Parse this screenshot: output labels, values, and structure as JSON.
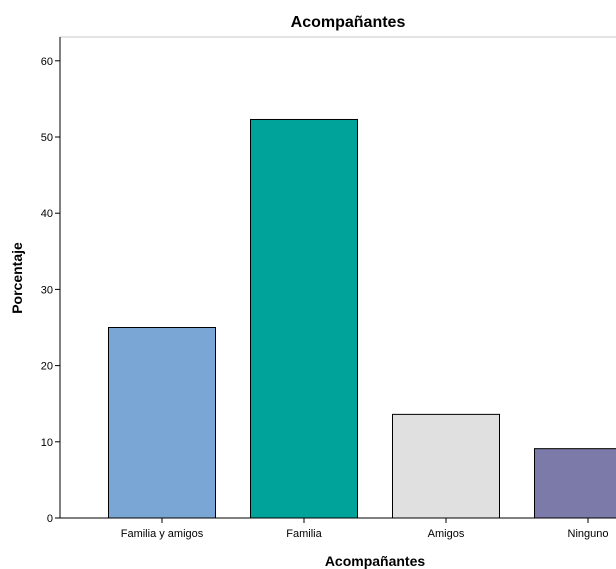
{
  "chart_data": {
    "type": "bar",
    "title": "Acompañantes",
    "xlabel": "Acompañantes",
    "ylabel": "Porcentaje",
    "categories": [
      "Familia y amigos",
      "Familia",
      "Amigos",
      "Ninguno"
    ],
    "values": [
      25.0,
      52.3,
      13.6,
      9.1
    ],
    "ylim": [
      0,
      63
    ],
    "yticks": [
      0,
      10,
      20,
      30,
      40,
      50,
      60
    ],
    "grid": false,
    "legend": "none",
    "colors": [
      "#79a6d4",
      "#00a39a",
      "#e0e0e0",
      "#7b7aa8"
    ]
  }
}
